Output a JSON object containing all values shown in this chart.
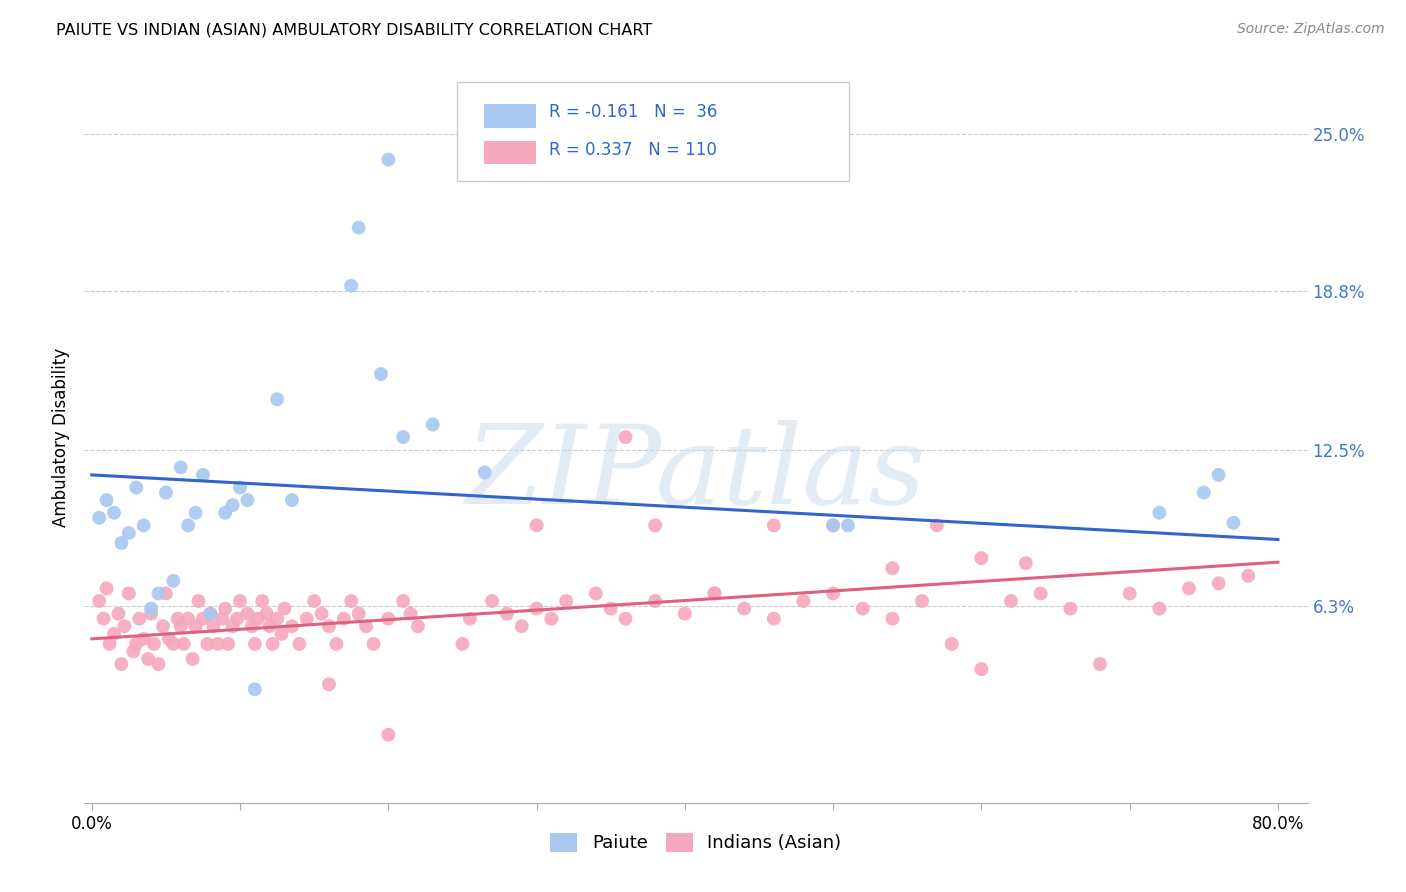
{
  "title": "PAIUTE VS INDIAN (ASIAN) AMBULATORY DISABILITY CORRELATION CHART",
  "source": "Source: ZipAtlas.com",
  "ylabel": "Ambulatory Disability",
  "xlim": [
    -0.005,
    0.82
  ],
  "ylim": [
    -0.015,
    0.275
  ],
  "xtick_pos": [
    0.0,
    0.1,
    0.2,
    0.3,
    0.4,
    0.5,
    0.6,
    0.7,
    0.8
  ],
  "xticklabels": [
    "0.0%",
    "",
    "",
    "",
    "",
    "",
    "",
    "",
    "80.0%"
  ],
  "ytick_positions": [
    0.063,
    0.125,
    0.188,
    0.25
  ],
  "ytick_labels": [
    "6.3%",
    "12.5%",
    "18.8%",
    "25.0%"
  ],
  "blue_color": "#A8C8F0",
  "pink_color": "#F5A8BC",
  "blue_line_color": "#3366CC",
  "pink_line_color": "#E06080",
  "legend_label_blue": "Paiute",
  "legend_label_pink": "Indians (Asian)",
  "watermark": "ZIPatlas",
  "blue_R": -0.161,
  "blue_N": 36,
  "pink_R": 0.337,
  "pink_N": 110,
  "blue_intercept": 0.115,
  "blue_slope": -0.032,
  "pink_intercept": 0.05,
  "pink_slope": 0.038,
  "blue_x": [
    0.005,
    0.01,
    0.015,
    0.02,
    0.025,
    0.03,
    0.035,
    0.04,
    0.045,
    0.05,
    0.055,
    0.06,
    0.065,
    0.07,
    0.075,
    0.08,
    0.09,
    0.095,
    0.1,
    0.105,
    0.11,
    0.125,
    0.135,
    0.175,
    0.18,
    0.195,
    0.2,
    0.21,
    0.23,
    0.265,
    0.5,
    0.51,
    0.72,
    0.75,
    0.76,
    0.77
  ],
  "blue_y": [
    0.098,
    0.105,
    0.1,
    0.088,
    0.092,
    0.11,
    0.095,
    0.062,
    0.068,
    0.108,
    0.073,
    0.118,
    0.095,
    0.1,
    0.115,
    0.06,
    0.1,
    0.103,
    0.11,
    0.105,
    0.03,
    0.145,
    0.105,
    0.19,
    0.213,
    0.155,
    0.24,
    0.13,
    0.135,
    0.116,
    0.095,
    0.095,
    0.1,
    0.108,
    0.115,
    0.096
  ],
  "pink_x": [
    0.005,
    0.008,
    0.01,
    0.012,
    0.015,
    0.018,
    0.02,
    0.022,
    0.025,
    0.028,
    0.03,
    0.032,
    0.035,
    0.038,
    0.04,
    0.042,
    0.045,
    0.048,
    0.05,
    0.052,
    0.055,
    0.058,
    0.06,
    0.062,
    0.065,
    0.068,
    0.07,
    0.072,
    0.075,
    0.078,
    0.08,
    0.082,
    0.085,
    0.088,
    0.09,
    0.092,
    0.095,
    0.098,
    0.1,
    0.105,
    0.108,
    0.11,
    0.112,
    0.115,
    0.118,
    0.12,
    0.122,
    0.125,
    0.128,
    0.13,
    0.135,
    0.14,
    0.145,
    0.15,
    0.155,
    0.16,
    0.165,
    0.17,
    0.175,
    0.18,
    0.185,
    0.19,
    0.2,
    0.21,
    0.215,
    0.22,
    0.25,
    0.255,
    0.27,
    0.28,
    0.29,
    0.3,
    0.31,
    0.32,
    0.34,
    0.35,
    0.36,
    0.38,
    0.4,
    0.42,
    0.44,
    0.46,
    0.48,
    0.5,
    0.52,
    0.54,
    0.56,
    0.58,
    0.6,
    0.62,
    0.64,
    0.66,
    0.68,
    0.7,
    0.72,
    0.74,
    0.76,
    0.78,
    0.3,
    0.36,
    0.38,
    0.42,
    0.46,
    0.5,
    0.54,
    0.57,
    0.6,
    0.63,
    0.16,
    0.2
  ],
  "pink_y": [
    0.065,
    0.058,
    0.07,
    0.048,
    0.052,
    0.06,
    0.04,
    0.055,
    0.068,
    0.045,
    0.048,
    0.058,
    0.05,
    0.042,
    0.06,
    0.048,
    0.04,
    0.055,
    0.068,
    0.05,
    0.048,
    0.058,
    0.055,
    0.048,
    0.058,
    0.042,
    0.055,
    0.065,
    0.058,
    0.048,
    0.06,
    0.055,
    0.048,
    0.058,
    0.062,
    0.048,
    0.055,
    0.058,
    0.065,
    0.06,
    0.055,
    0.048,
    0.058,
    0.065,
    0.06,
    0.055,
    0.048,
    0.058,
    0.052,
    0.062,
    0.055,
    0.048,
    0.058,
    0.065,
    0.06,
    0.055,
    0.048,
    0.058,
    0.065,
    0.06,
    0.055,
    0.048,
    0.058,
    0.065,
    0.06,
    0.055,
    0.048,
    0.058,
    0.065,
    0.06,
    0.055,
    0.062,
    0.058,
    0.065,
    0.068,
    0.062,
    0.058,
    0.065,
    0.06,
    0.068,
    0.062,
    0.058,
    0.065,
    0.068,
    0.062,
    0.058,
    0.065,
    0.048,
    0.038,
    0.065,
    0.068,
    0.062,
    0.04,
    0.068,
    0.062,
    0.07,
    0.072,
    0.075,
    0.095,
    0.13,
    0.095,
    0.068,
    0.095,
    0.095,
    0.078,
    0.095,
    0.082,
    0.08,
    0.032,
    0.012
  ]
}
